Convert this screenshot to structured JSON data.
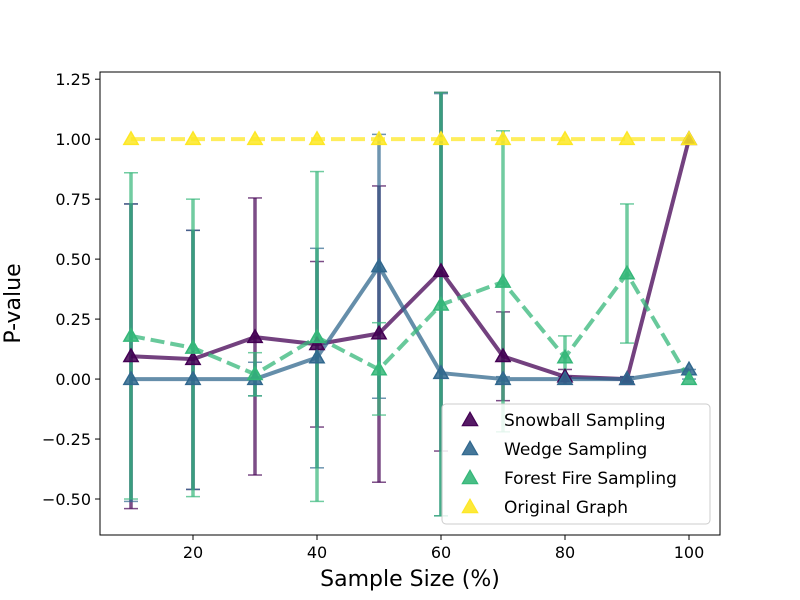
{
  "chart_data": {
    "type": "line",
    "title": "",
    "xlabel": "Sample Size (%)",
    "ylabel": "P-value",
    "xlim": [
      5,
      105
    ],
    "ylim": [
      -0.65,
      1.28
    ],
    "x_ticks": [
      20,
      40,
      60,
      80,
      100
    ],
    "y_ticks": [
      -0.5,
      -0.25,
      0.0,
      0.25,
      0.5,
      0.75,
      1.0,
      1.25
    ],
    "x_tick_labels": [
      "20",
      "40",
      "60",
      "80",
      "100"
    ],
    "y_tick_labels": [
      "−0.50",
      "−0.25",
      "0.00",
      "0.25",
      "0.50",
      "0.75",
      "1.00",
      "1.25"
    ],
    "grid": false,
    "legend_position": "bottom-right",
    "x": [
      10,
      20,
      30,
      40,
      50,
      60,
      70,
      80,
      90,
      100
    ],
    "series": [
      {
        "name": "Snowball Sampling",
        "color": "#440154",
        "linestyle": "solid",
        "values": [
          0.095,
          0.083,
          0.175,
          0.145,
          0.19,
          0.45,
          0.095,
          0.01,
          0.0,
          1.0
        ],
        "err_low": [
          -0.54,
          -0.46,
          -0.4,
          -0.2,
          -0.43,
          -0.3,
          -0.09,
          -0.02,
          -0.01,
          1.0
        ],
        "err_high": [
          0.73,
          0.62,
          0.755,
          0.49,
          0.805,
          1.195,
          0.28,
          0.04,
          0.01,
          1.0
        ]
      },
      {
        "name": "Wedge Sampling",
        "color": "#31688e",
        "linestyle": "solid",
        "values": [
          0.0,
          0.0,
          0.0,
          0.09,
          0.47,
          0.025,
          0.0,
          0.0,
          0.0,
          0.04
        ],
        "err_low": [
          -0.51,
          -0.46,
          -0.07,
          -0.37,
          -0.08,
          -0.57,
          -0.01,
          -0.01,
          -0.01,
          0.0
        ],
        "err_high": [
          0.73,
          0.62,
          0.07,
          0.545,
          1.02,
          1.19,
          0.01,
          0.01,
          0.01,
          0.04
        ]
      },
      {
        "name": "Forest Fire Sampling",
        "color": "#35b779",
        "linestyle": "dashed",
        "values": [
          0.18,
          0.13,
          0.02,
          0.175,
          0.04,
          0.31,
          0.405,
          0.09,
          0.44,
          0.0
        ],
        "err_low": [
          -0.5,
          -0.49,
          -0.07,
          -0.51,
          -0.15,
          -0.57,
          -0.22,
          0.0,
          0.15,
          0.0
        ],
        "err_high": [
          0.86,
          0.75,
          0.11,
          0.865,
          0.235,
          1.195,
          1.035,
          0.18,
          0.73,
          0.0
        ]
      },
      {
        "name": "Original Graph",
        "color": "#fde725",
        "linestyle": "dashed",
        "values": [
          1.0,
          1.0,
          1.0,
          1.0,
          1.0,
          1.0,
          1.0,
          1.0,
          1.0,
          1.0
        ],
        "err_low": null,
        "err_high": null
      }
    ]
  }
}
